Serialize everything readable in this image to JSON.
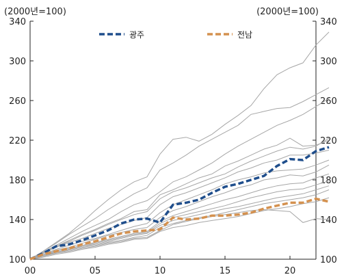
{
  "chart_data": {
    "type": "line",
    "unit_left": "(2000년=100)",
    "unit_right": "(2000년=100)",
    "ylim": [
      100,
      340
    ],
    "xlim": [
      0,
      22
    ],
    "y_ticks": [
      100,
      140,
      180,
      220,
      260,
      300,
      340
    ],
    "y_tick_labels": [
      "100",
      "140",
      "180",
      "220",
      "260",
      "300",
      "340"
    ],
    "x_ticks": [
      0,
      5,
      10,
      15,
      20
    ],
    "x_tick_labels": [
      "00",
      "05",
      "10",
      "15",
      "20"
    ],
    "grid": false,
    "legend": {
      "position": "top"
    },
    "colors": {
      "gwangju": "#1f4e8c",
      "jeonnam": "#d4914f",
      "other": "#a6a6a6"
    },
    "series": [
      {
        "name": "광주",
        "role": "highlight",
        "color": "#1f4e8c",
        "values": [
          100,
          106,
          113,
          115,
          119,
          124,
          129,
          136,
          140,
          141,
          137,
          155,
          157,
          160,
          167,
          173,
          176,
          180,
          184,
          194,
          201,
          200,
          209,
          213
        ]
      },
      {
        "name": "전남",
        "role": "highlight",
        "color": "#d4914f",
        "values": [
          100,
          105,
          108,
          111,
          115,
          118,
          122,
          126,
          128,
          129,
          130,
          142,
          140,
          141,
          144,
          144,
          145,
          147,
          151,
          154,
          157,
          157,
          161,
          158
        ]
      },
      {
        "values": [
          100,
          108,
          117,
          126,
          137,
          149,
          160,
          170,
          178,
          183,
          206,
          221,
          223,
          219,
          226,
          236,
          245,
          255,
          272,
          286,
          293,
          298,
          316,
          329
        ]
      },
      {
        "values": [
          100,
          108,
          116,
          125,
          133,
          141,
          150,
          158,
          166,
          172,
          190,
          197,
          205,
          214,
          221,
          228,
          235,
          246,
          249,
          252,
          253,
          259,
          266,
          273
        ]
      },
      {
        "values": [
          100,
          107,
          114,
          121,
          128,
          134,
          140,
          148,
          155,
          159,
          168,
          178,
          183,
          190,
          197,
          206,
          214,
          221,
          228,
          235,
          240,
          246,
          254,
          262
        ]
      },
      {
        "values": [
          100,
          106,
          113,
          119,
          125,
          130,
          136,
          141,
          148,
          150,
          165,
          170,
          176,
          182,
          186,
          194,
          199,
          205,
          211,
          215,
          222,
          214,
          215,
          220
        ]
      },
      {
        "values": [
          100,
          107,
          113,
          118,
          124,
          129,
          135,
          140,
          145,
          148,
          161,
          168,
          172,
          177,
          182,
          186,
          193,
          199,
          204,
          209,
          213,
          211,
          214,
          222
        ]
      },
      {
        "values": [
          100,
          106,
          112,
          117,
          121,
          126,
          131,
          135,
          139,
          142,
          155,
          163,
          167,
          172,
          177,
          182,
          188,
          192,
          197,
          200,
          205,
          205,
          207,
          210
        ]
      },
      {
        "values": [
          100,
          105,
          110,
          114,
          118,
          121,
          125,
          129,
          133,
          136,
          147,
          155,
          160,
          165,
          170,
          176,
          180,
          183,
          187,
          189,
          190,
          191,
          195,
          200
        ]
      },
      {
        "values": [
          100,
          104,
          109,
          112,
          116,
          120,
          124,
          127,
          130,
          132,
          142,
          149,
          153,
          158,
          163,
          167,
          172,
          175,
          180,
          182,
          185,
          184,
          188,
          195
        ]
      },
      {
        "values": [
          100,
          104,
          108,
          111,
          114,
          117,
          120,
          123,
          126,
          128,
          138,
          144,
          148,
          152,
          156,
          160,
          163,
          167,
          171,
          174,
          176,
          177,
          182,
          186
        ]
      },
      {
        "values": [
          100,
          103,
          107,
          110,
          113,
          116,
          119,
          122,
          125,
          127,
          136,
          142,
          145,
          148,
          151,
          154,
          158,
          162,
          165,
          168,
          170,
          171,
          175,
          179
        ]
      },
      {
        "values": [
          100,
          104,
          107,
          110,
          113,
          115,
          118,
          121,
          124,
          126,
          134,
          139,
          142,
          145,
          148,
          151,
          153,
          156,
          159,
          162,
          164,
          166,
          170,
          174
        ]
      },
      {
        "values": [
          100,
          103,
          106,
          109,
          112,
          114,
          117,
          119,
          122,
          124,
          132,
          136,
          139,
          142,
          144,
          147,
          150,
          153,
          156,
          158,
          160,
          162,
          165,
          170
        ]
      },
      {
        "values": [
          100,
          102,
          105,
          107,
          110,
          112,
          115,
          117,
          120,
          121,
          128,
          132,
          134,
          137,
          139,
          141,
          143,
          146,
          149,
          151,
          153,
          156,
          158,
          162
        ]
      },
      {
        "values": [
          100,
          103,
          106,
          108,
          111,
          113,
          116,
          118,
          121,
          122,
          129,
          135,
          138,
          141,
          143,
          145,
          147,
          149,
          150,
          149,
          148,
          137,
          141,
          140
        ]
      }
    ]
  }
}
